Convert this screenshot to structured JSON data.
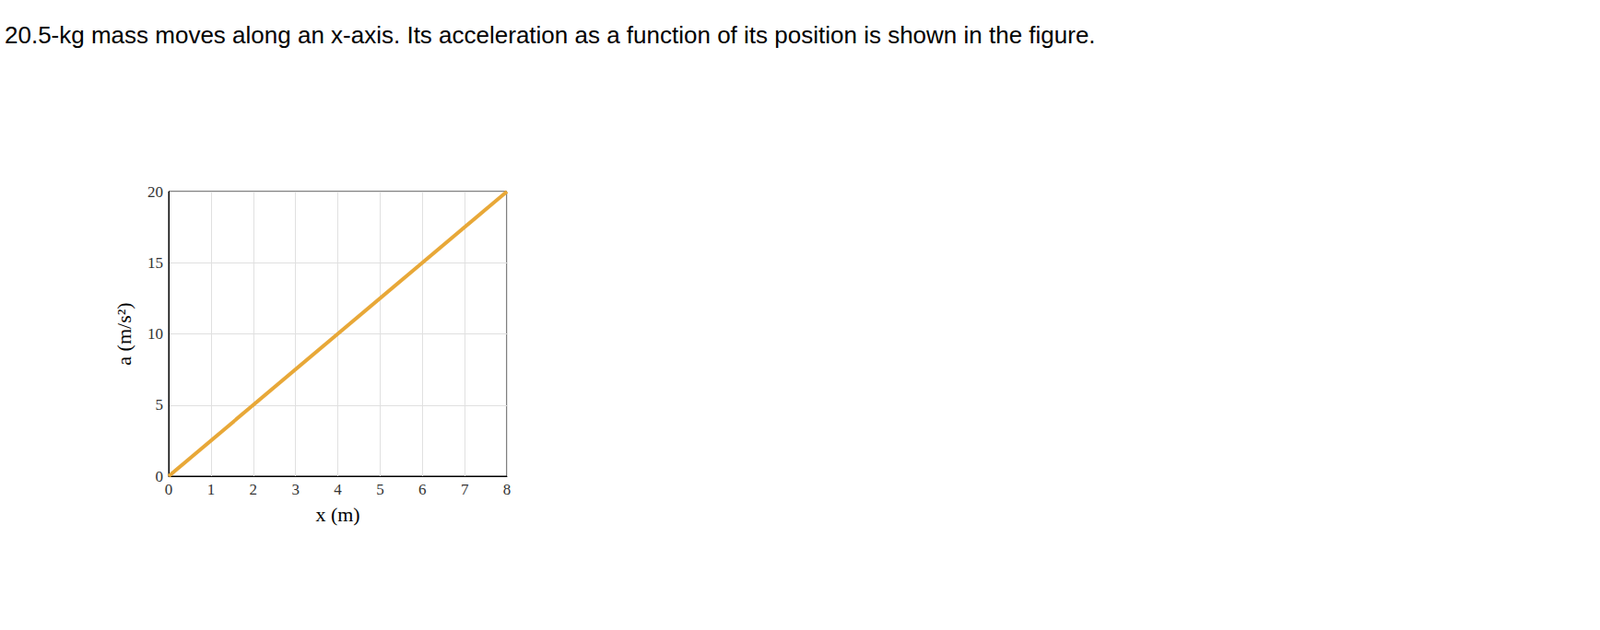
{
  "chart_data": {
    "type": "line",
    "title": "20.5-kg mass moves along an x-axis. Its acceleration as a function of its position is shown in the figure.",
    "x_label": "x (m)",
    "y_label": "a (m/s²)",
    "x": [
      0,
      8
    ],
    "values": [
      0,
      20
    ],
    "color": "#e8a838",
    "xlim": [
      0,
      8
    ],
    "xticks": [
      0,
      1,
      2,
      3,
      4,
      5,
      6,
      7,
      8
    ],
    "ylim": [
      0,
      20
    ],
    "yticks": [
      0,
      5,
      10,
      15,
      20
    ],
    "grid": true
  }
}
